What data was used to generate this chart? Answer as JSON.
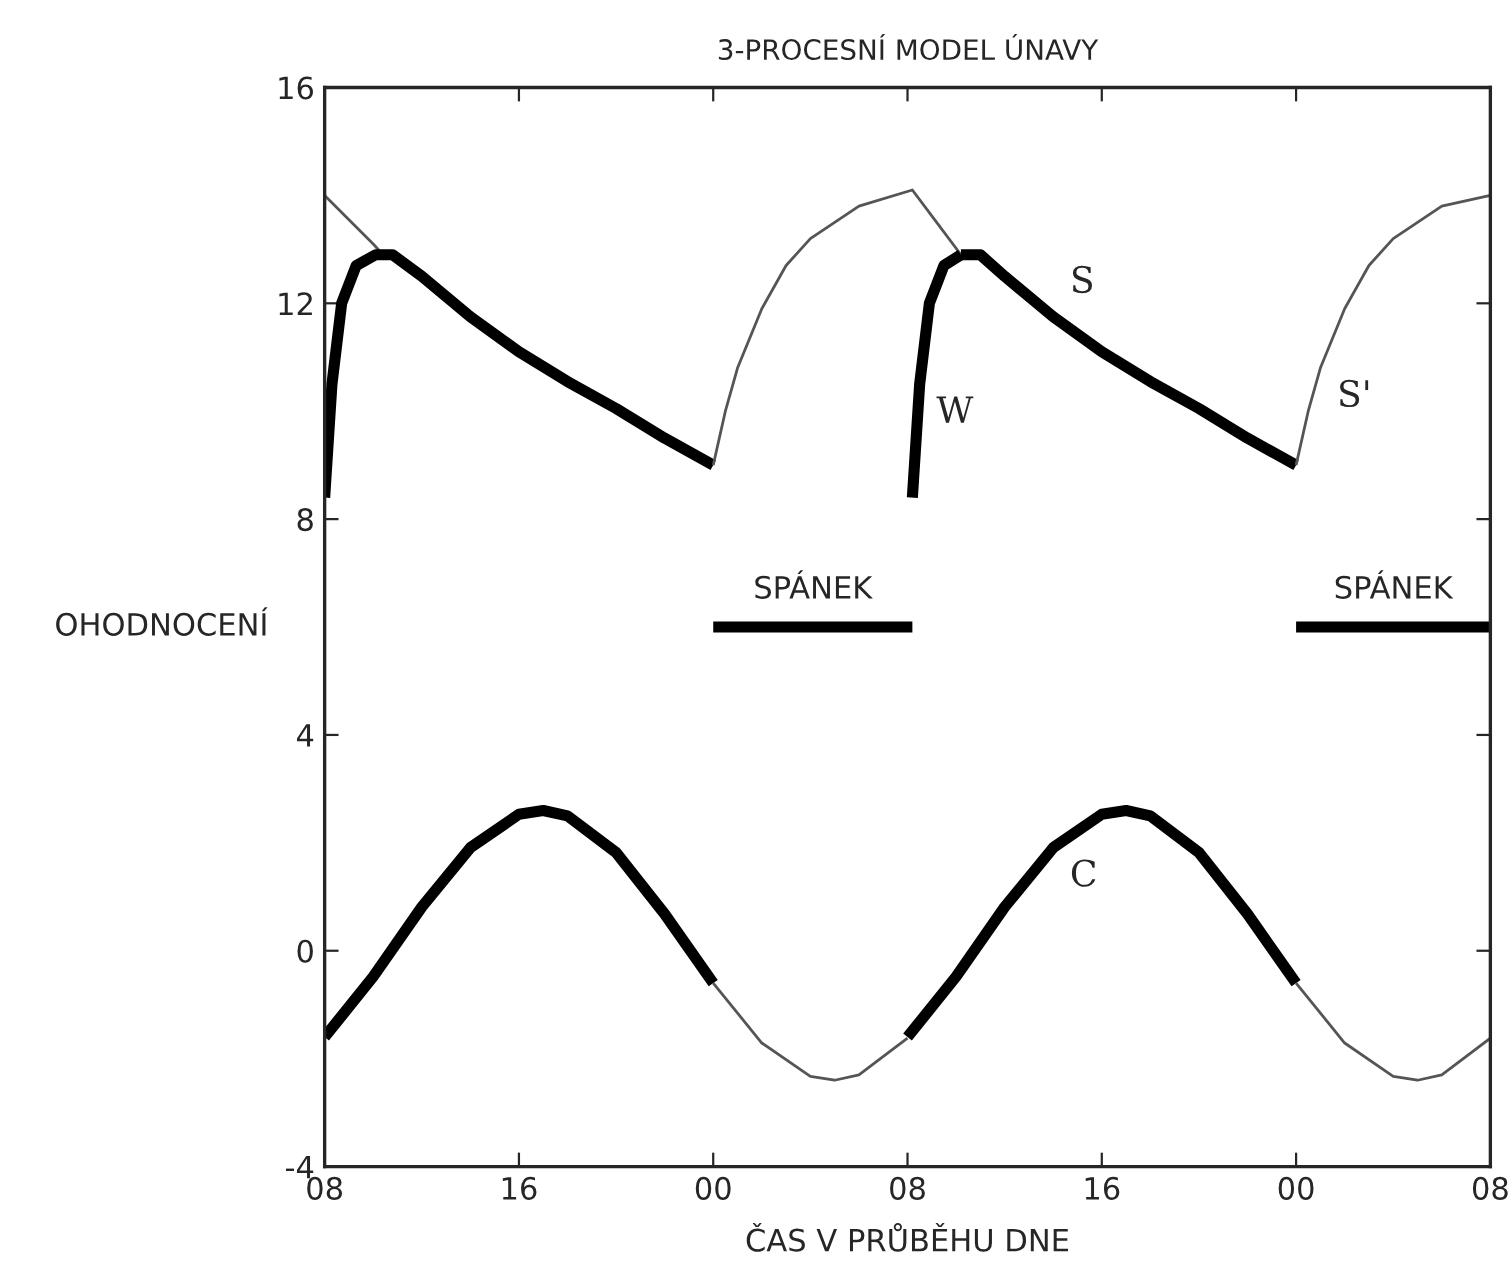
{
  "chart_data": {
    "type": "line",
    "title": "3-PROCESNÍ MODEL ÚNAVY",
    "xlabel": "ČAS V PRŮBĚHU DNE",
    "ylabel": "OHODNOCENÍ",
    "xlim": [
      8,
      56
    ],
    "xticks": [
      {
        "value": 8,
        "label": "08"
      },
      {
        "value": 16,
        "label": "16"
      },
      {
        "value": 24,
        "label": "00"
      },
      {
        "value": 32,
        "label": "08"
      },
      {
        "value": 40,
        "label": "16"
      },
      {
        "value": 48,
        "label": "00"
      },
      {
        "value": 56,
        "label": "08"
      }
    ],
    "ylim": [
      -4,
      16
    ],
    "yticks": [
      -4,
      0,
      4,
      8,
      12,
      16
    ],
    "grid": false,
    "legend": false,
    "marker": "none",
    "line_style": "solid",
    "series": [
      {
        "color": "#555555",
        "x": [
          8,
          9,
          10,
          10.3
        ],
        "values": [
          14.0,
          13.55,
          13.1,
          12.95
        ]
      },
      {
        "color": "#000000",
        "x": [
          8,
          8.3,
          8.7,
          9.3,
          10.1,
          10.8,
          12,
          14,
          16,
          18,
          20,
          22,
          24
        ],
        "values": [
          8.4,
          10.5,
          12.0,
          12.7,
          12.9,
          12.9,
          12.5,
          11.75,
          11.1,
          10.55,
          10.05,
          9.5,
          9.0
        ]
      },
      {
        "color": "#555555",
        "x": [
          24,
          24.5,
          25,
          26,
          27,
          28,
          30,
          32.2,
          33.2,
          34.2
        ],
        "values": [
          9.0,
          10.0,
          10.8,
          11.9,
          12.7,
          13.2,
          13.8,
          14.1,
          13.5,
          12.9
        ]
      },
      {
        "name": "W",
        "color": "#000000",
        "x": [
          32.2,
          32.5,
          32.9,
          33.5,
          34.2
        ],
        "values": [
          8.4,
          10.5,
          12.0,
          12.7,
          12.9
        ]
      },
      {
        "name": "S",
        "color": "#000000",
        "x": [
          34.2,
          35,
          36,
          38,
          40,
          42,
          44,
          46,
          48
        ],
        "values": [
          12.9,
          12.9,
          12.5,
          11.75,
          11.1,
          10.55,
          10.05,
          9.5,
          9.0
        ]
      },
      {
        "name": "S'",
        "color": "#555555",
        "x": [
          48,
          48.5,
          49,
          50,
          51,
          52,
          54,
          56
        ],
        "values": [
          9.0,
          10.0,
          10.8,
          11.9,
          12.7,
          13.2,
          13.8,
          14.0
        ]
      },
      {
        "color": "#000000",
        "x": [
          8,
          10,
          12,
          14,
          16,
          17,
          18,
          20,
          22,
          24
        ],
        "values": [
          -1.6,
          -0.48,
          0.81,
          1.91,
          2.53,
          2.6,
          2.5,
          1.82,
          0.68,
          -0.6
        ]
      },
      {
        "color": "#555555",
        "x": [
          24,
          26,
          28,
          29,
          30,
          32
        ],
        "values": [
          -0.6,
          -1.71,
          -2.33,
          -2.4,
          -2.3,
          -1.62
        ]
      },
      {
        "name": "C",
        "color": "#000000",
        "x": [
          32,
          34,
          36,
          38,
          40,
          41,
          42,
          44,
          46,
          48
        ],
        "values": [
          -1.6,
          -0.48,
          0.81,
          1.91,
          2.53,
          2.6,
          2.5,
          1.82,
          0.68,
          -0.6
        ]
      },
      {
        "color": "#555555",
        "x": [
          48,
          50,
          52,
          53,
          54,
          56
        ],
        "values": [
          -0.6,
          -1.71,
          -2.33,
          -2.4,
          -2.3,
          -1.62
        ]
      },
      {
        "name": "SPÁNEK",
        "color": "#000000",
        "x": [
          24,
          32.2
        ],
        "values": [
          6,
          6
        ]
      },
      {
        "name": "SPÁNEK",
        "color": "#000000",
        "x": [
          48,
          56
        ],
        "values": [
          6,
          6
        ]
      }
    ]
  }
}
